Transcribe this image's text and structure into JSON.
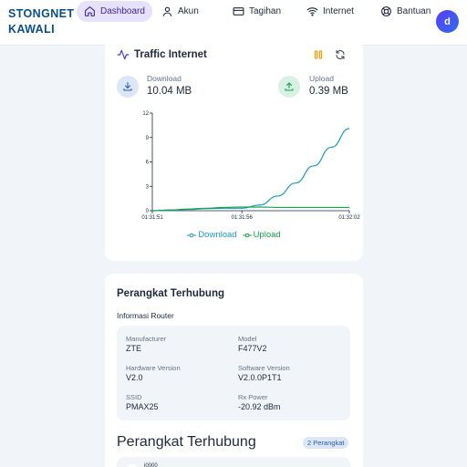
{
  "brand": {
    "line1": "STONGNET",
    "line2": "KAWALI"
  },
  "nav": {
    "items": [
      {
        "label": "Dashboard",
        "icon": "home-icon",
        "active": true
      },
      {
        "label": "Akun",
        "icon": "user-icon",
        "active": false
      },
      {
        "label": "Tagihan",
        "icon": "credit-card-icon",
        "active": false
      },
      {
        "label": "Internet",
        "icon": "wifi-icon",
        "active": false
      },
      {
        "label": "Bantuan",
        "icon": "lifebuoy-icon",
        "active": false
      }
    ]
  },
  "user": {
    "avatar_initial": "d"
  },
  "traffic": {
    "title": "Traffic Internet",
    "download": {
      "label": "Download",
      "value": "10.04 MB"
    },
    "upload": {
      "label": "Upload",
      "value": "0.39 MB"
    },
    "legend": {
      "download": "Download",
      "upload": "Upload"
    }
  },
  "chart_data": {
    "type": "line",
    "x": [
      "01:31:51",
      "01:31:52",
      "01:31:53",
      "01:31:54",
      "01:31:55",
      "01:31:56",
      "01:31:57",
      "01:31:58",
      "01:31:59",
      "01:32:00",
      "01:32:01",
      "01:32:02"
    ],
    "x_tick_labels": [
      "01:31:51",
      "01:31:56",
      "01:32:02"
    ],
    "y_ticks": [
      0,
      3,
      6,
      9,
      12
    ],
    "ylim": [
      0,
      12
    ],
    "series": [
      {
        "name": "Download",
        "color": "#1a9ac7",
        "values": [
          0,
          0.05,
          0.15,
          0.25,
          0.3,
          0.3,
          0.7,
          1.8,
          3.4,
          5.5,
          7.8,
          10.1
        ]
      },
      {
        "name": "Upload",
        "color": "#16a34a",
        "values": [
          0,
          0.1,
          0.2,
          0.3,
          0.4,
          0.45,
          0.45,
          0.4,
          0.4,
          0.4,
          0.4,
          0.4
        ]
      }
    ],
    "grid": false,
    "legend_position": "bottom"
  },
  "devices": {
    "title": "Perangkat Terhubung",
    "router_section_label": "Informasi Router",
    "router": [
      {
        "key": "Manufacturer",
        "value": "ZTE"
      },
      {
        "key": "Model",
        "value": "F477V2"
      },
      {
        "key": "Hardware Version",
        "value": "V2.0"
      },
      {
        "key": "Software Version",
        "value": "V2.0.0P1T1"
      },
      {
        "key": "SSID",
        "value": "PMAX25"
      },
      {
        "key": "Rx Power",
        "value": "-20.92 dBm"
      }
    ],
    "list_title": "Perangkat Terhubung",
    "count_badge": "2 Perangkat",
    "first_device_name": "i0000"
  },
  "colors": {
    "brand": "#0b4f8a",
    "nav_active_bg": "#e7e2fb",
    "download": "#1a9ac7",
    "upload": "#16a34a",
    "pause": "#f59e0b",
    "avatar": "#4f46e5"
  }
}
